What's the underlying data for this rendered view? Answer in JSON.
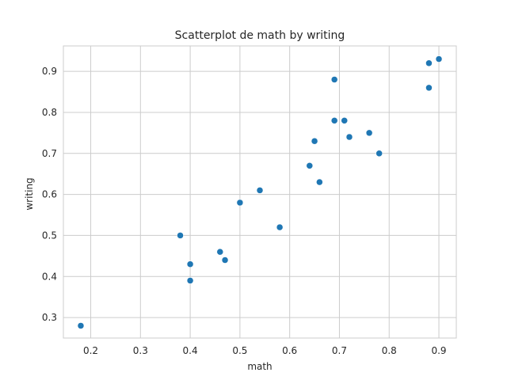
{
  "chart_data": {
    "type": "scatter",
    "title": "Scatterplot de math by writing",
    "xlabel": "math",
    "ylabel": "writing",
    "xlim": [
      0.145,
      0.935
    ],
    "ylim": [
      0.25,
      0.962
    ],
    "xticks": [
      0.2,
      0.3,
      0.4,
      0.5,
      0.6,
      0.7,
      0.8,
      0.9
    ],
    "yticks": [
      0.3,
      0.4,
      0.5,
      0.6,
      0.7,
      0.8,
      0.9
    ],
    "grid": true,
    "point_color": "#1f77b4",
    "grid_color": "#cccccc",
    "points": [
      {
        "x": 0.18,
        "y": 0.28
      },
      {
        "x": 0.38,
        "y": 0.5
      },
      {
        "x": 0.4,
        "y": 0.43
      },
      {
        "x": 0.4,
        "y": 0.39
      },
      {
        "x": 0.46,
        "y": 0.46
      },
      {
        "x": 0.47,
        "y": 0.44
      },
      {
        "x": 0.5,
        "y": 0.58
      },
      {
        "x": 0.54,
        "y": 0.61
      },
      {
        "x": 0.58,
        "y": 0.52
      },
      {
        "x": 0.64,
        "y": 0.67
      },
      {
        "x": 0.65,
        "y": 0.73
      },
      {
        "x": 0.66,
        "y": 0.63
      },
      {
        "x": 0.69,
        "y": 0.88
      },
      {
        "x": 0.69,
        "y": 0.78
      },
      {
        "x": 0.71,
        "y": 0.78
      },
      {
        "x": 0.72,
        "y": 0.74
      },
      {
        "x": 0.76,
        "y": 0.75
      },
      {
        "x": 0.78,
        "y": 0.7
      },
      {
        "x": 0.88,
        "y": 0.92
      },
      {
        "x": 0.88,
        "y": 0.86
      },
      {
        "x": 0.9,
        "y": 0.93
      }
    ]
  }
}
